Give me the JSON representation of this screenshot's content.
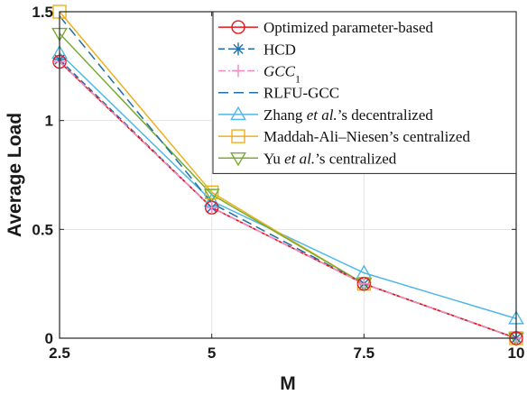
{
  "chart_data": {
    "type": "line",
    "xlabel": "M",
    "ylabel": "Average Load",
    "xlim": [
      2.5,
      10
    ],
    "ylim": [
      0,
      1.5
    ],
    "x_ticks": [
      2.5,
      5,
      7.5,
      10
    ],
    "x_tick_labels": [
      "2.5",
      "5",
      "7.5",
      "10"
    ],
    "y_ticks": [
      0,
      0.5,
      1,
      1.5
    ],
    "y_tick_labels": [
      "0",
      "0.5",
      "1",
      "1.5"
    ],
    "grid": true,
    "legend_position": "top-right",
    "x": [
      2.5,
      5,
      7.5,
      10
    ],
    "series": [
      {
        "name": "Optimized parameter-based",
        "legend_parts": [
          {
            "text": "Optimized parameter-based",
            "italic": false
          }
        ],
        "values": [
          1.27,
          0.6,
          0.25,
          0.0
        ],
        "color": "#e8141c",
        "line_style": "solid",
        "marker": "circle"
      },
      {
        "name": "HCD",
        "legend_parts": [
          {
            "text": "HCD",
            "italic": false
          }
        ],
        "values": [
          1.28,
          0.6,
          0.25,
          0.0
        ],
        "color": "#1f6fa8",
        "line_style": "dashed",
        "marker": "asterisk"
      },
      {
        "name": "GCC1",
        "legend_parts": [
          {
            "text": "GCC",
            "italic": true
          },
          {
            "text": "1",
            "italic": false,
            "sub": true
          }
        ],
        "values": [
          1.27,
          0.6,
          0.25,
          0.0
        ],
        "color": "#f08cc0",
        "line_style": "dashdot",
        "marker": "plus"
      },
      {
        "name": "RLFU-GCC",
        "legend_parts": [
          {
            "text": "RLFU-GCC",
            "italic": false
          }
        ],
        "values": [
          1.48,
          0.62,
          0.25,
          0.0
        ],
        "color": "#1f6fa8",
        "line_style": "longdash",
        "marker": "none"
      },
      {
        "name": "Zhang et al.'s decentralized",
        "legend_parts": [
          {
            "text": "Zhang ",
            "italic": false
          },
          {
            "text": "et al.",
            "italic": true
          },
          {
            "text": "’s decentralized",
            "italic": false
          }
        ],
        "values": [
          1.31,
          0.63,
          0.3,
          0.09
        ],
        "color": "#4fb8e8",
        "line_style": "solid",
        "marker": "triangle-up"
      },
      {
        "name": "Maddah-Ali–Niesen's centralized",
        "legend_parts": [
          {
            "text": "Maddah-Ali–Niesen’s centralized",
            "italic": false
          }
        ],
        "values": [
          1.5,
          0.67,
          0.25,
          0.0
        ],
        "color": "#ecb01f",
        "line_style": "solid",
        "marker": "square"
      },
      {
        "name": "Yu et al.'s centralized",
        "legend_parts": [
          {
            "text": "Yu ",
            "italic": false
          },
          {
            "text": "et al.",
            "italic": true
          },
          {
            "text": "’s centralized",
            "italic": false
          }
        ],
        "values": [
          1.4,
          0.66,
          0.25,
          0.0
        ],
        "color": "#77ac30",
        "line_style": "solid",
        "marker": "triangle-down"
      }
    ]
  }
}
